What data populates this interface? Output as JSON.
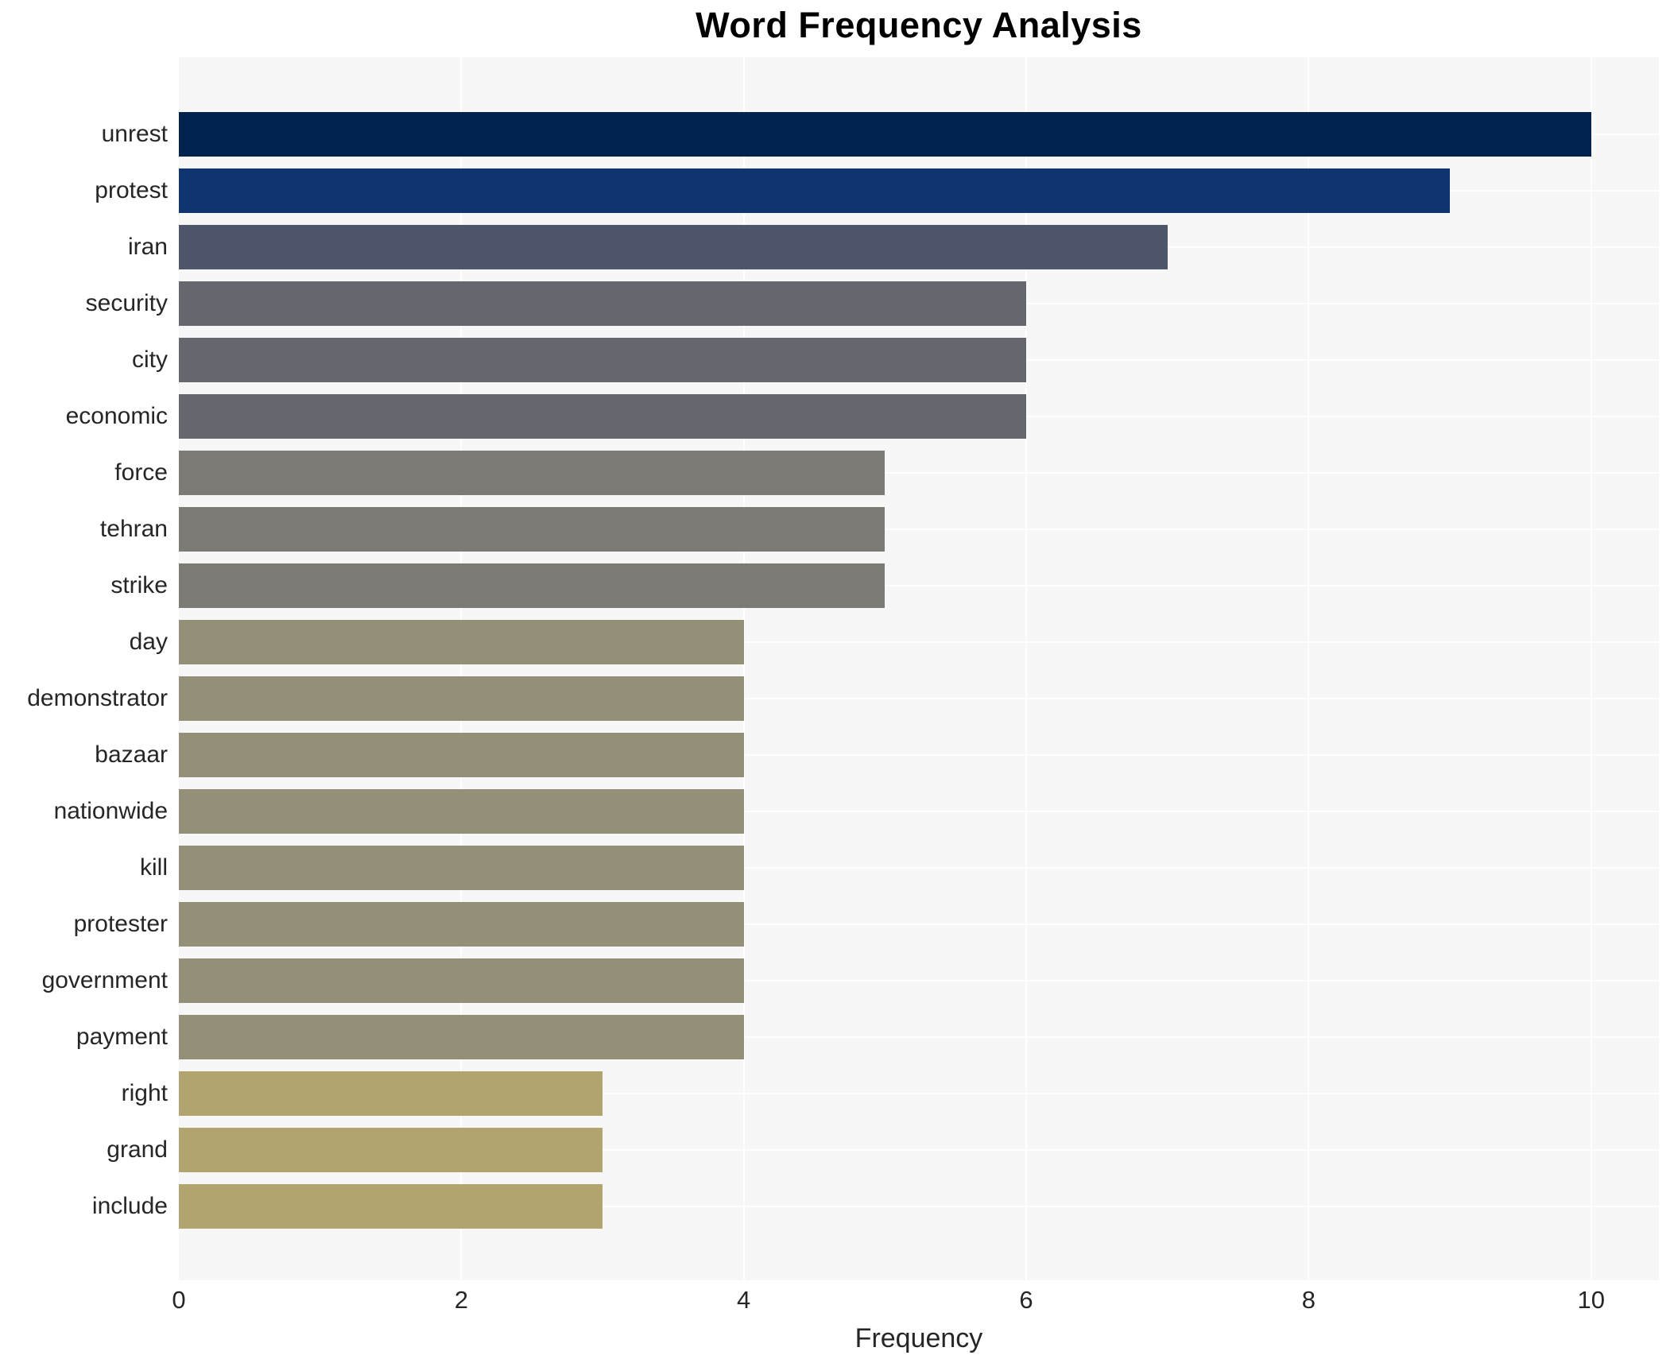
{
  "title": "Word Frequency Analysis",
  "chart_data": {
    "type": "bar",
    "orientation": "horizontal",
    "title": "Word Frequency Analysis",
    "xlabel": "Frequency",
    "ylabel": "",
    "xlim": [
      0,
      10.48
    ],
    "x_ticks": [
      0,
      2,
      4,
      6,
      8,
      10
    ],
    "grid": true,
    "legend": false,
    "categories": [
      "unrest",
      "protest",
      "iran",
      "security",
      "city",
      "economic",
      "force",
      "tehran",
      "strike",
      "day",
      "demonstrator",
      "bazaar",
      "nationwide",
      "kill",
      "protester",
      "government",
      "payment",
      "right",
      "grand",
      "include"
    ],
    "values": [
      10,
      9,
      7,
      6,
      6,
      6,
      5,
      5,
      5,
      4,
      4,
      4,
      4,
      4,
      4,
      4,
      4,
      3,
      3,
      3
    ],
    "bar_colors": [
      "#02234e",
      "#0e3570",
      "#4d566b",
      "#65676f",
      "#65676f",
      "#65676f",
      "#7b7a74",
      "#7b7a74",
      "#7b7a74",
      "#948f77",
      "#948f77",
      "#948f77",
      "#948f77",
      "#948f77",
      "#948f77",
      "#948f77",
      "#948f77",
      "#b1a46f",
      "#b1a46f",
      "#b1a46f"
    ],
    "colors": {
      "plot_background": "#f7f7f7",
      "gridline": "#ffffff",
      "text": "#262626",
      "title_text": "#000000"
    }
  }
}
